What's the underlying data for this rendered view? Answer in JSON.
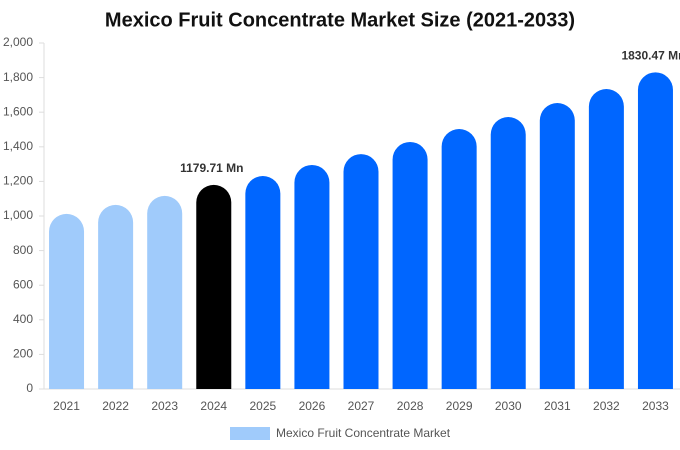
{
  "chart_data": {
    "type": "bar",
    "title": "Mexico Fruit Concentrate Market Size (2021-2033)",
    "categories": [
      "2021",
      "2022",
      "2023",
      "2024",
      "2025",
      "2026",
      "2027",
      "2028",
      "2029",
      "2030",
      "2031",
      "2032",
      "2033"
    ],
    "series": [
      {
        "name": "Mexico Fruit Concentrate Market",
        "color": "#a0cbfb",
        "values": [
          1012,
          1064,
          1116,
          1179.71,
          1231,
          1295,
          1358,
          1428,
          1503,
          1572,
          1653,
          1734,
          1830.47
        ]
      }
    ],
    "value_labels": [
      null,
      null,
      null,
      "1179.71 Mn",
      null,
      null,
      null,
      null,
      null,
      null,
      null,
      null,
      "1830.47 Mn"
    ],
    "bar_colors": [
      "#a0cbfb",
      "#a0cbfb",
      "#a0cbfb",
      "#000000",
      "#0066ff",
      "#0066ff",
      "#0066ff",
      "#0066ff",
      "#0066ff",
      "#0066ff",
      "#0066ff",
      "#0066ff",
      "#0066ff"
    ],
    "ylim": [
      0,
      2000
    ],
    "yticks": [
      0,
      200,
      400,
      600,
      800,
      {
        "value": 1000,
        "label": "1,000"
      },
      {
        "value": 1200,
        "label": "1,200"
      },
      {
        "value": 1400,
        "label": "1,400"
      },
      {
        "value": 1600,
        "label": "1,600"
      },
      {
        "value": 1800,
        "label": "1,800"
      },
      {
        "value": 2000,
        "label": "2,000"
      }
    ],
    "grid": false,
    "legend": "bottom"
  }
}
